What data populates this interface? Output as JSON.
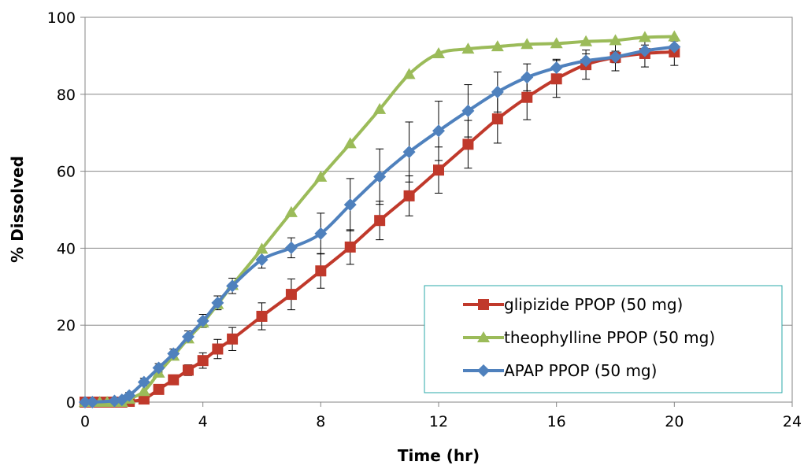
{
  "chart_data": {
    "type": "line",
    "xlabel": "Time (hr)",
    "ylabel": "% Dissolved",
    "xlim": [
      0,
      24
    ],
    "ylim": [
      0,
      100
    ],
    "xticks": [
      0,
      4,
      8,
      12,
      16,
      20,
      24
    ],
    "yticks": [
      0,
      20,
      40,
      60,
      80,
      100
    ],
    "grid": "horizontal",
    "legend_position": "bottom-right",
    "series": [
      {
        "name": "glipizide PPOP (50 mg)",
        "color": "#C0392B",
        "marker": "square",
        "x": [
          0,
          0.25,
          0.5,
          0.75,
          1,
          1.25,
          1.5,
          2,
          2.5,
          3,
          3.5,
          4,
          4.5,
          5,
          6,
          7,
          8,
          9,
          10,
          11,
          12,
          13,
          14,
          15,
          16,
          17,
          18,
          19,
          20
        ],
        "y": [
          0,
          0,
          0,
          0,
          0,
          0,
          0.2,
          0.8,
          3.3,
          5.8,
          8.3,
          10.8,
          13.8,
          16.4,
          22.3,
          28,
          34.1,
          40.3,
          47.2,
          53.6,
          60.3,
          67,
          73.6,
          79.2,
          84,
          87.7,
          89.6,
          90.6,
          91
        ],
        "error": [
          0,
          0,
          0,
          0,
          0,
          0,
          0.3,
          0.6,
          0.8,
          1,
          1.4,
          2,
          2.5,
          3,
          3.5,
          4,
          4.5,
          4.5,
          5,
          5.2,
          6,
          6.2,
          6.3,
          5.8,
          4.8,
          3.8,
          3.5,
          3.5,
          3.5
        ]
      },
      {
        "name": "theophylline PPOP (50 mg)",
        "color": "#9BBB59",
        "marker": "triangle",
        "x": [
          0,
          0.25,
          0.5,
          0.75,
          1,
          1.25,
          1.5,
          2,
          2.5,
          3,
          3.5,
          4,
          4.5,
          5,
          6,
          7,
          8,
          9,
          10,
          11,
          12,
          13,
          14,
          15,
          16,
          17,
          18,
          19,
          20
        ],
        "y": [
          0,
          0,
          0,
          0,
          0,
          0,
          0.8,
          2.8,
          7.6,
          12,
          16.5,
          20.6,
          25.4,
          30.4,
          39.8,
          49.3,
          58.5,
          67.2,
          76.1,
          85.2,
          90.6,
          91.8,
          92.4,
          93,
          93.2,
          93.7,
          94,
          94.8,
          95
        ]
      },
      {
        "name": "APAP PPOP (50 mg)",
        "color": "#4F81BD",
        "marker": "diamond",
        "x": [
          0,
          0.25,
          1,
          1.25,
          1.5,
          2,
          2.5,
          3,
          3.5,
          4,
          4.5,
          5,
          6,
          7,
          8,
          9,
          10,
          11,
          12,
          13,
          14,
          15,
          16,
          17,
          18,
          19,
          20
        ],
        "y": [
          0,
          0,
          0.3,
          0.6,
          1.7,
          5.2,
          8.9,
          12.6,
          17,
          21.1,
          25.8,
          30.2,
          37,
          40.1,
          43.8,
          51.3,
          58.6,
          65,
          70.5,
          75.7,
          80.6,
          84.4,
          86.9,
          88.7,
          89.7,
          91.3,
          92.3
        ],
        "error": [
          0,
          0,
          0.3,
          0.4,
          0.8,
          1,
          1.1,
          1.2,
          1.5,
          1.7,
          1.8,
          2,
          2.2,
          2.6,
          5.3,
          6.8,
          7.2,
          7.8,
          7.7,
          6.8,
          5.2,
          3.5,
          2.2,
          1.8,
          1.5,
          1.5,
          1.5
        ]
      }
    ]
  }
}
